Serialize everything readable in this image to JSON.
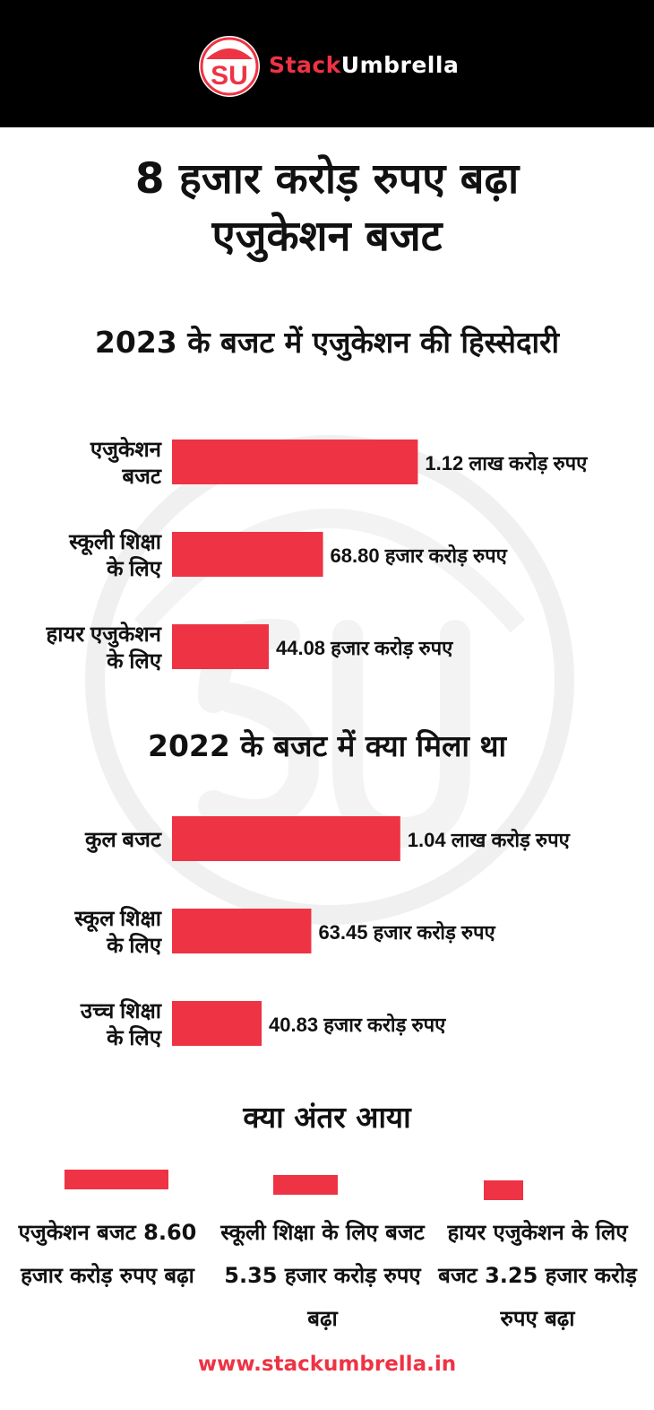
{
  "header": {
    "logo_letters": "SU",
    "brand_part1": "Stack",
    "brand_part2": "Umbrella"
  },
  "title_line1": "8 हजार करोड़ रुपए बढ़ा",
  "title_line2": "एजुकेशन बजट",
  "colors": {
    "accent": "#ee3344",
    "header_bg": "#000000",
    "watermark": "#f0f0f0"
  },
  "chart_data": [
    {
      "type": "bar",
      "orientation": "horizontal",
      "title": "2023 के बजट में एजुकेशन की हिस्सेदारी",
      "categories": [
        [
          "एजुकेशन",
          "बजट"
        ],
        [
          "स्कूली शिक्षा",
          "के लिए"
        ],
        [
          "हायर एजुकेशन",
          "के लिए"
        ]
      ],
      "values_hazar_crore": [
        112,
        68.8,
        44.08
      ],
      "data_labels": [
        "1.12 लाख करोड़ रुपए",
        "68.80 हजार करोड़ रुपए",
        "44.08 हजार करोड़ रुपए"
      ]
    },
    {
      "type": "bar",
      "orientation": "horizontal",
      "title": "2022 के बजट में क्या मिला था",
      "categories": [
        [
          "कुल बजट"
        ],
        [
          "स्कूल शिक्षा",
          "के लिए"
        ],
        [
          "उच्च शिक्षा",
          "के लिए"
        ]
      ],
      "values_hazar_crore": [
        104,
        63.45,
        40.83
      ],
      "data_labels": [
        "1.04 लाख करोड़ रुपए",
        "63.45 हजार करोड़ रुपए",
        "40.83 हजार करोड़ रुपए"
      ]
    }
  ],
  "difference": {
    "title": "क्या अंतर आया",
    "items": [
      {
        "text": "एजुकेशन बजट 8.60 हजार करोड़ रुपए बढ़ा",
        "value_hazar_crore": 8.6
      },
      {
        "text": "स्कूली शिक्षा के लिए बजट 5.35 हजार करोड़ रुपए बढ़ा",
        "value_hazar_crore": 5.35
      },
      {
        "text": "हायर एजुकेशन के लिए बजट 3.25 हजार करोड़ रुपए बढ़ा",
        "value_hazar_crore": 3.25
      }
    ]
  },
  "footer_url": "www.stackumbrella.in"
}
